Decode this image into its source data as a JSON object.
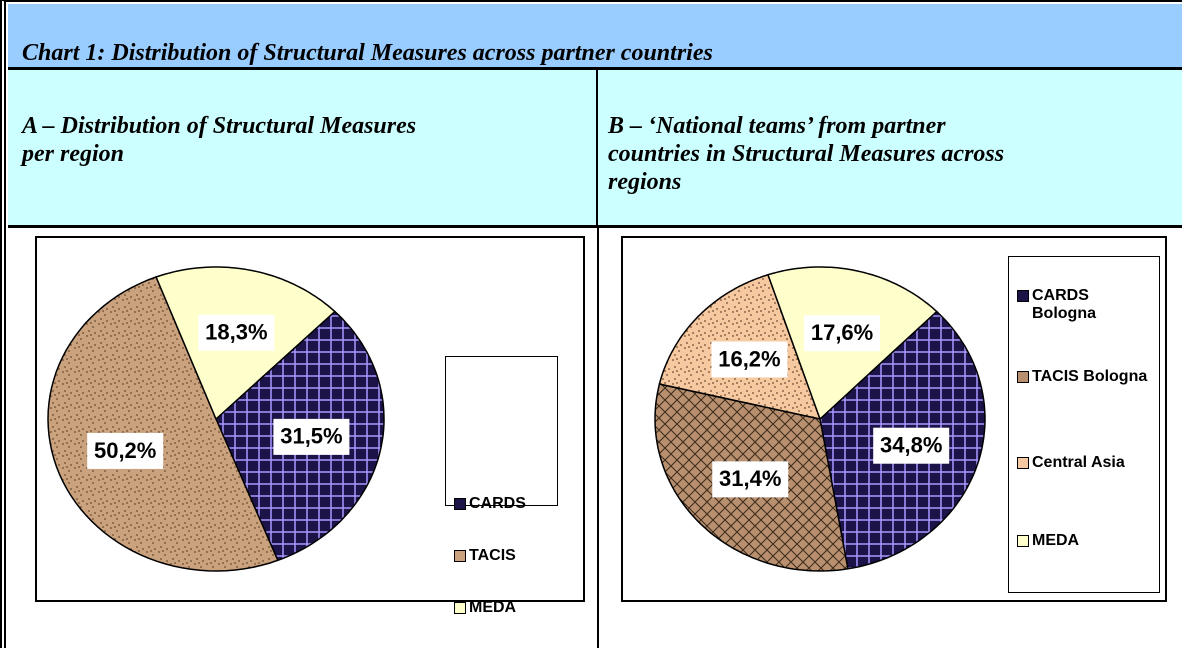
{
  "title": "Chart 1: Distribution of Structural Measures across partner countries",
  "panels": [
    {
      "heading": "A – Distribution of Structural Measures per region"
    },
    {
      "heading": "B – ‘National teams’ from partner countries in Structural Measures across regions"
    }
  ],
  "chart_data": [
    {
      "type": "pie",
      "categories": [
        "CARDS",
        "TACIS",
        "MEDA"
      ],
      "values": [
        31.5,
        50.2,
        18.3
      ],
      "value_labels": [
        "31,5%",
        "50,2%",
        "18,3%"
      ],
      "colors": [
        "#1c1448",
        "#caa27e",
        "#ffffcc"
      ],
      "patterns": [
        "grid",
        "dots",
        "plain"
      ],
      "legend": "right"
    },
    {
      "type": "pie",
      "categories": [
        "CARDS Bologna",
        "TACIS Bologna",
        "Central Asia",
        "MEDA"
      ],
      "values": [
        34.8,
        31.4,
        16.2,
        17.6
      ],
      "value_labels": [
        "34,8%",
        "31,4%",
        "16,2%",
        "17,6%"
      ],
      "colors": [
        "#1c1448",
        "#b89070",
        "#f6c9a0",
        "#ffffcc"
      ],
      "patterns": [
        "grid",
        "crosshatch",
        "dots",
        "plain"
      ],
      "legend": "right"
    }
  ]
}
